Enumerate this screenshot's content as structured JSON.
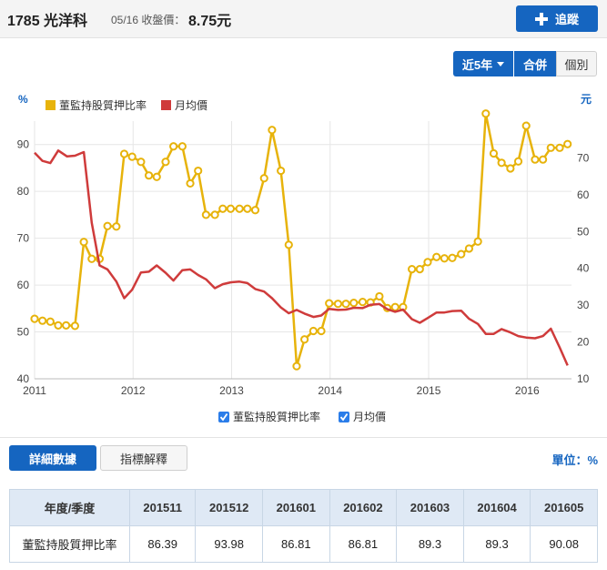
{
  "header": {
    "stock": "1785 光洋科",
    "close_label": "05/16 收盤價：",
    "close_value": "8.75元",
    "track_label": "追蹤"
  },
  "controls": {
    "range_label": "近5年",
    "combined_label": "合併",
    "individual_label": "個別"
  },
  "chart_data": {
    "type": "line",
    "left_axis_unit": "%",
    "right_axis_unit": "元",
    "ylim_left": [
      40,
      95
    ],
    "ylim_right": [
      10,
      80
    ],
    "left_ticks": [
      40,
      50,
      60,
      70,
      80,
      90
    ],
    "right_ticks": [
      10,
      20,
      30,
      40,
      50,
      60,
      70
    ],
    "x_years": [
      "2011",
      "2012",
      "2013",
      "2014",
      "2015",
      "2016"
    ],
    "x_start": 2011.0,
    "x_end": 2016.45,
    "legend_top": [
      {
        "name": "董監持股質押比率",
        "color": "#e7b30b"
      },
      {
        "name": "月均價",
        "color": "#cf3b3b"
      }
    ],
    "legend_bottom": [
      "董監持股質押比率",
      "月均價"
    ],
    "series": [
      {
        "name": "董監持股質押比率",
        "axis": "left",
        "color": "#e7b30b",
        "points": [
          [
            2011.0,
            52.8
          ],
          [
            2011.08,
            52.4
          ],
          [
            2011.16,
            52.2
          ],
          [
            2011.24,
            51.4
          ],
          [
            2011.32,
            51.4
          ],
          [
            2011.41,
            51.3
          ],
          [
            2011.5,
            69.2
          ],
          [
            2011.58,
            65.6
          ],
          [
            2011.66,
            65.6
          ],
          [
            2011.74,
            72.6
          ],
          [
            2011.83,
            72.5
          ],
          [
            2011.91,
            88.0
          ],
          [
            2011.99,
            87.4
          ],
          [
            2012.08,
            86.3
          ],
          [
            2012.16,
            83.4
          ],
          [
            2012.24,
            83.1
          ],
          [
            2012.33,
            86.3
          ],
          [
            2012.41,
            89.6
          ],
          [
            2012.5,
            89.6
          ],
          [
            2012.58,
            81.7
          ],
          [
            2012.66,
            84.4
          ],
          [
            2012.74,
            75.0
          ],
          [
            2012.83,
            75.0
          ],
          [
            2012.91,
            76.3
          ],
          [
            2012.99,
            76.3
          ],
          [
            2013.08,
            76.3
          ],
          [
            2013.16,
            76.3
          ],
          [
            2013.24,
            76.0
          ],
          [
            2013.33,
            82.8
          ],
          [
            2013.41,
            93.1
          ],
          [
            2013.5,
            84.4
          ],
          [
            2013.58,
            68.6
          ],
          [
            2013.66,
            42.7
          ],
          [
            2013.74,
            48.4
          ],
          [
            2013.83,
            50.2
          ],
          [
            2013.91,
            50.2
          ],
          [
            2013.99,
            56.1
          ],
          [
            2014.08,
            56.0
          ],
          [
            2014.16,
            56.0
          ],
          [
            2014.24,
            56.2
          ],
          [
            2014.33,
            56.4
          ],
          [
            2014.41,
            56.3
          ],
          [
            2014.5,
            57.6
          ],
          [
            2014.58,
            55.1
          ],
          [
            2014.66,
            55.3
          ],
          [
            2014.74,
            55.3
          ],
          [
            2014.83,
            63.4
          ],
          [
            2014.91,
            63.4
          ],
          [
            2014.99,
            64.9
          ],
          [
            2015.08,
            66.0
          ],
          [
            2015.16,
            65.7
          ],
          [
            2015.24,
            65.8
          ],
          [
            2015.33,
            66.6
          ],
          [
            2015.41,
            67.8
          ],
          [
            2015.5,
            69.3
          ],
          [
            2015.58,
            96.6
          ],
          [
            2015.66,
            88.1
          ],
          [
            2015.74,
            86.1
          ],
          [
            2015.83,
            84.9
          ],
          [
            2015.91,
            86.4
          ],
          [
            2015.99,
            94.0
          ],
          [
            2016.08,
            86.8
          ],
          [
            2016.16,
            86.8
          ],
          [
            2016.24,
            89.3
          ],
          [
            2016.33,
            89.3
          ],
          [
            2016.41,
            90.1
          ]
        ]
      },
      {
        "name": "月均價",
        "axis": "right",
        "color": "#cf3b3b",
        "points": [
          [
            2011.0,
            71.4
          ],
          [
            2011.08,
            69.2
          ],
          [
            2011.16,
            68.6
          ],
          [
            2011.24,
            72.0
          ],
          [
            2011.33,
            70.4
          ],
          [
            2011.41,
            70.6
          ],
          [
            2011.5,
            71.6
          ],
          [
            2011.58,
            52.4
          ],
          [
            2011.66,
            40.8
          ],
          [
            2011.74,
            39.7
          ],
          [
            2011.83,
            36.4
          ],
          [
            2011.91,
            31.9
          ],
          [
            2011.99,
            34.2
          ],
          [
            2012.08,
            38.9
          ],
          [
            2012.16,
            39.1
          ],
          [
            2012.24,
            40.8
          ],
          [
            2012.33,
            38.8
          ],
          [
            2012.41,
            36.7
          ],
          [
            2012.5,
            39.5
          ],
          [
            2012.58,
            39.7
          ],
          [
            2012.66,
            38.2
          ],
          [
            2012.74,
            37.0
          ],
          [
            2012.83,
            34.6
          ],
          [
            2012.91,
            35.7
          ],
          [
            2012.99,
            36.2
          ],
          [
            2013.08,
            36.4
          ],
          [
            2013.16,
            36.0
          ],
          [
            2013.24,
            34.4
          ],
          [
            2013.33,
            33.7
          ],
          [
            2013.41,
            31.9
          ],
          [
            2013.5,
            29.4
          ],
          [
            2013.58,
            27.8
          ],
          [
            2013.66,
            28.7
          ],
          [
            2013.74,
            27.7
          ],
          [
            2013.83,
            26.8
          ],
          [
            2013.91,
            27.2
          ],
          [
            2013.99,
            29.0
          ],
          [
            2014.08,
            28.7
          ],
          [
            2014.16,
            28.8
          ],
          [
            2014.24,
            29.3
          ],
          [
            2014.33,
            29.2
          ],
          [
            2014.41,
            30.1
          ],
          [
            2014.5,
            30.3
          ],
          [
            2014.58,
            28.9
          ],
          [
            2014.66,
            28.2
          ],
          [
            2014.74,
            28.8
          ],
          [
            2014.83,
            26.2
          ],
          [
            2014.91,
            25.2
          ],
          [
            2014.99,
            26.5
          ],
          [
            2015.08,
            28.0
          ],
          [
            2015.16,
            28.0
          ],
          [
            2015.24,
            28.4
          ],
          [
            2015.33,
            28.5
          ],
          [
            2015.41,
            26.3
          ],
          [
            2015.5,
            24.9
          ],
          [
            2015.58,
            22.2
          ],
          [
            2015.66,
            22.2
          ],
          [
            2015.74,
            23.5
          ],
          [
            2015.83,
            22.6
          ],
          [
            2015.91,
            21.6
          ],
          [
            2015.99,
            21.2
          ],
          [
            2016.08,
            21.0
          ],
          [
            2016.16,
            21.6
          ],
          [
            2016.24,
            23.6
          ],
          [
            2016.33,
            18.5
          ],
          [
            2016.41,
            13.6
          ]
        ]
      }
    ]
  },
  "actions": {
    "detail_label": "詳細數據",
    "explain_label": "指標解釋",
    "unit_label": "單位：%"
  },
  "table": {
    "header_label": "年度/季度",
    "periods": [
      "201511",
      "201512",
      "201601",
      "201602",
      "201603",
      "201604",
      "201605"
    ],
    "row_label": "董監持股質押比率",
    "values": [
      "86.39",
      "93.98",
      "86.81",
      "86.81",
      "89.3",
      "89.3",
      "90.08"
    ]
  }
}
